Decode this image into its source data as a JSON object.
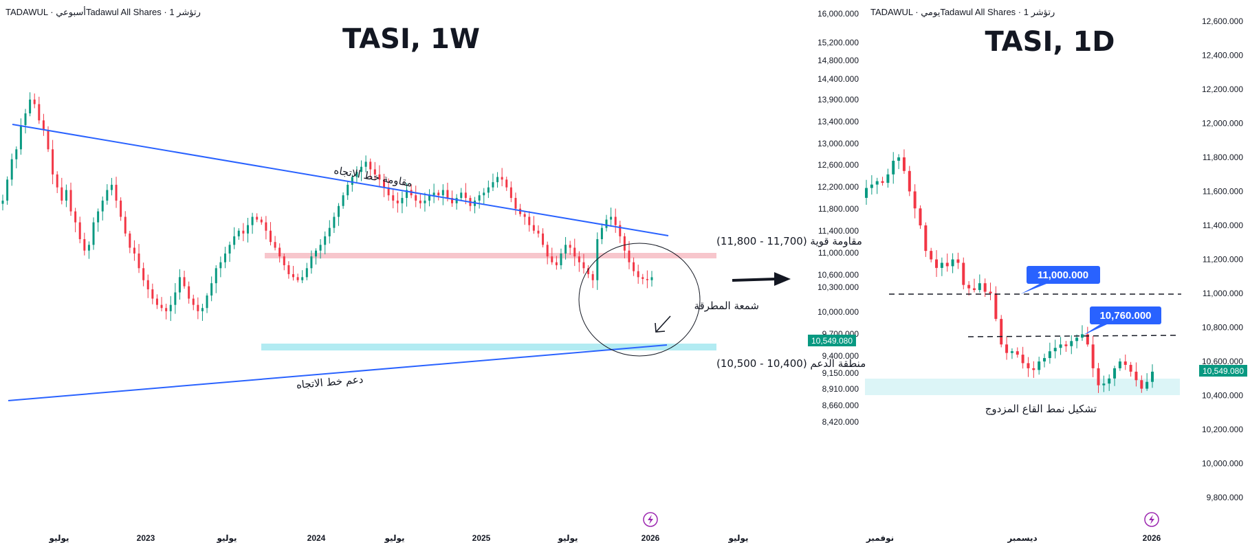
{
  "left_panel": {
    "header": "TADAWUL · أسبوعيTadawul All Shares · 1 رتؤشر",
    "title": "TASI, 1W",
    "y_ticks": [
      "16,000.000",
      "15,200.000",
      "14,800.000",
      "14,400.000",
      "13,900.000",
      "13,400.000",
      "13,000.000",
      "12,600.000",
      "12,200.000",
      "11,800.000",
      "11,400.000",
      "11,000.000",
      "10,600.000",
      "10,300.000",
      "10,000.000",
      "9,700.000",
      "9,400.000",
      "9,150.000",
      "8,910.000",
      "8,660.000",
      "8,420.000"
    ],
    "x_ticks": [
      "يوليو",
      "2023",
      "يوليو",
      "2024",
      "يوليو",
      "2025",
      "يوليو",
      "2026",
      "يوليو"
    ],
    "price_badge": "10,549.080",
    "annotations": {
      "trend_resistance": "مقاومة خط الاتجاه",
      "trend_support": "دعم خط الاتجاه",
      "strong_resistance": "مقاومة قوية (11,700 - 11,800)",
      "support_zone": "منطقة الدعم (10,400 - 10,500)",
      "hammer": "شمعة المطرقة"
    }
  },
  "right_panel": {
    "header": "TADAWUL · يوميTadawul All Shares · 1 رتؤشر",
    "title": "TASI, 1D",
    "y_ticks": [
      "12,600.000",
      "12,400.000",
      "12,200.000",
      "12,000.000",
      "11,800.000",
      "11,600.000",
      "11,400.000",
      "11,200.000",
      "11,000.000",
      "10,800.000",
      "10,600.000",
      "10,400.000",
      "10,200.000",
      "10,000.000",
      "9,800.000"
    ],
    "x_ticks": [
      "نوفمبر",
      "ديسمبر",
      "2026"
    ],
    "price_badge": "10,549.080",
    "level_high": "11,000.000",
    "level_low": "10,760.000",
    "pattern": "تشكيل نمط القاع المزدوج"
  },
  "colors": {
    "up": "#089981",
    "down": "#f23645",
    "trend": "#2962ff",
    "resistance_zone": "#f7c6cc",
    "support_zone": "#b2ebf2",
    "badge": "#089981",
    "label": "#2962ff"
  },
  "chart_data": [
    {
      "type": "candlestick",
      "title": "TASI, 1W",
      "ylim": [
        8420,
        16000
      ],
      "y_scale": "log",
      "levels": {
        "resistance_zone": [
          11700,
          11800
        ],
        "support_zone": [
          10400,
          10500
        ],
        "last_price": 10549.08
      },
      "close_series": [
        11900,
        12300,
        12700,
        12900,
        13400,
        13650,
        13950,
        13850,
        13500,
        13300,
        12900,
        12400,
        12150,
        11900,
        12100,
        11700,
        11500,
        11200,
        11000,
        11100,
        11500,
        11700,
        11900,
        12100,
        12200,
        11900,
        11600,
        11300,
        11050,
        10950,
        10700,
        10500,
        10350,
        10200,
        10100,
        10050,
        10000,
        10100,
        10300,
        10550,
        10400,
        10200,
        10100,
        10000,
        10050,
        10250,
        10450,
        10700,
        10800,
        10950,
        11100,
        11250,
        11350,
        11300,
        11450,
        11600,
        11550,
        11500,
        11350,
        11150,
        11050,
        10900,
        10750,
        10600,
        10550,
        10500,
        10550,
        10700,
        10900,
        11000,
        11100,
        11250,
        11400,
        11600,
        11800,
        12000,
        12200,
        12350,
        12450,
        12550,
        12650,
        12500,
        12400,
        12300,
        12150,
        12000,
        11900,
        11850,
        11950,
        12100,
        12000,
        11900,
        11850,
        11900,
        12000,
        12050,
        12000,
        12100,
        11950,
        11850,
        11950,
        12050,
        11950,
        11800,
        11900,
        12000,
        12050,
        12150,
        12250,
        12350,
        12300,
        12150,
        11950,
        11750,
        11650,
        11600,
        11450,
        11350,
        11300,
        11100,
        10900,
        10800,
        10750,
        10950,
        11100,
        11050,
        10900,
        10800,
        10700,
        10600,
        10500,
        11200,
        11400,
        11550,
        11600,
        11450,
        11250,
        11000,
        10800,
        10650,
        10550,
        10520,
        10500,
        10549
      ]
    },
    {
      "type": "candlestick",
      "title": "TASI, 1D",
      "ylim": [
        9800,
        12600
      ],
      "levels": {
        "level_high": 11000,
        "level_low": 10760,
        "support_zone": [
          10420,
          10520
        ],
        "last_price": 10549.08
      },
      "close_series": [
        11620,
        11640,
        11660,
        11650,
        11700,
        11780,
        11800,
        11720,
        11600,
        11500,
        11400,
        11250,
        11200,
        11150,
        11180,
        11160,
        11200,
        11180,
        11050,
        11030,
        11020,
        11060,
        11010,
        11000,
        10850,
        10700,
        10650,
        10660,
        10640,
        10590,
        10560,
        10550,
        10600,
        10620,
        10660,
        10680,
        10700,
        10690,
        10720,
        10740,
        10760,
        10700,
        10560,
        10460,
        10470,
        10500,
        10560,
        10600,
        10580,
        10540,
        10490,
        10440,
        10480,
        10540
      ]
    }
  ]
}
